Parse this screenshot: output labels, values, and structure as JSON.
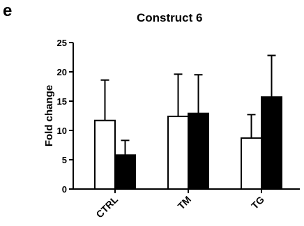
{
  "panel_label": "e",
  "chart_data": {
    "type": "bar",
    "title": "Construct 6",
    "xlabel": "",
    "ylabel": "Fold change",
    "categories": [
      "CTRL",
      "TM",
      "TG"
    ],
    "series": [
      {
        "name": "",
        "fill": "#ffffff",
        "values": [
          11.7,
          12.4,
          8.7
        ],
        "errors": [
          6.9,
          7.2,
          4.0
        ]
      },
      {
        "name": "",
        "fill": "#000000",
        "values": [
          5.8,
          12.9,
          15.7
        ],
        "errors": [
          2.5,
          6.6,
          7.1
        ]
      }
    ],
    "ylim": [
      0,
      25
    ],
    "yticks": [
      0,
      5,
      10,
      15,
      20,
      25
    ],
    "grid": false,
    "legend": "none"
  }
}
